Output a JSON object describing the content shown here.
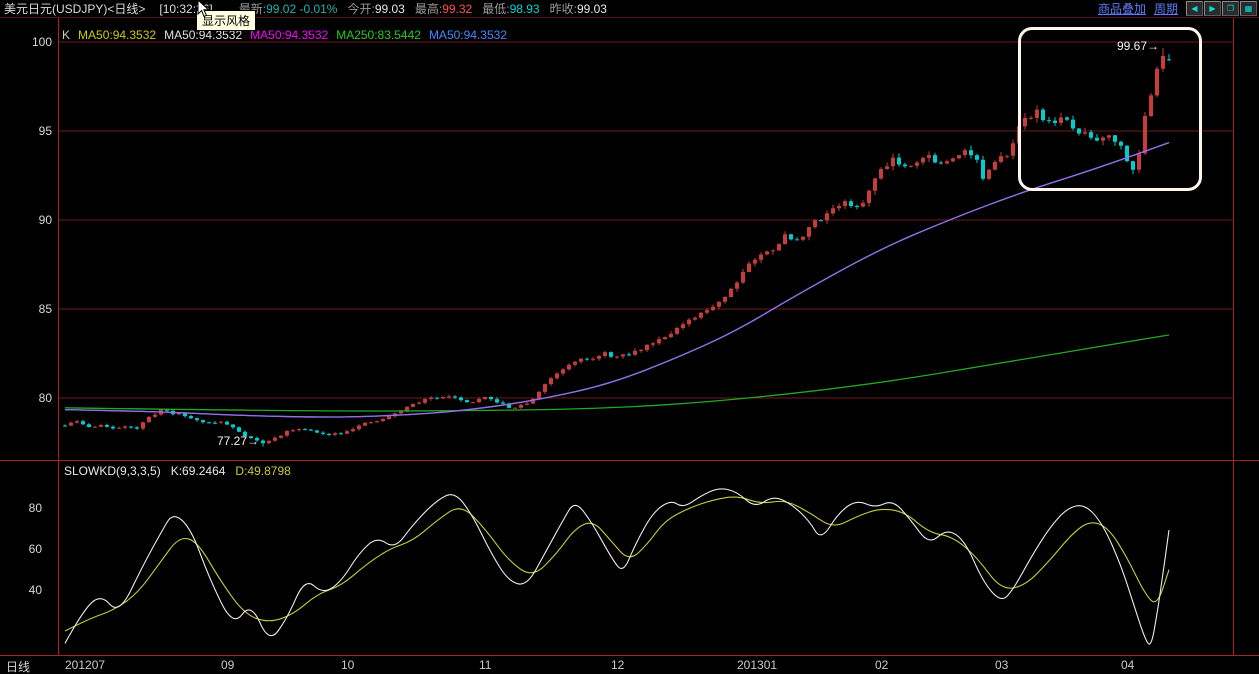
{
  "topbar": {
    "title": "美元日元(USDJPY)<日线>",
    "time": "[10:32:36]",
    "quotes": [
      {
        "label": "最新:",
        "value": "99.02",
        "change": "-0.01%",
        "color": "#20b2aa"
      },
      {
        "label": "今开:",
        "value": "99.03",
        "color": "#e8e8e8"
      },
      {
        "label": "最高:",
        "value": "99.32",
        "color": "#ff5050"
      },
      {
        "label": "最低:",
        "value": "98.93",
        "color": "#00d8d8"
      },
      {
        "label": "昨收:",
        "value": "99.03",
        "color": "#e8e8e8"
      }
    ],
    "links": [
      {
        "label": "商品叠加"
      },
      {
        "label": "周期"
      }
    ],
    "window_buttons": [
      {
        "name": "scroll-left-button",
        "glyph": "◀"
      },
      {
        "name": "scroll-right-button",
        "glyph": "▶"
      },
      {
        "name": "window-restore-button",
        "glyph": "❐"
      },
      {
        "name": "window-tile-button",
        "glyph": "▦"
      }
    ]
  },
  "tooltip": {
    "text": "显示风格"
  },
  "main_chart": {
    "indicator_labels": [
      {
        "text": "K",
        "color": "#cccccc"
      },
      {
        "text": "MA50:94.3532",
        "color": "#cccc00"
      },
      {
        "text": "MA50:94.3532",
        "color": "#e0e0e0"
      },
      {
        "text": "MA50:94.3532",
        "color": "#ff00ff"
      },
      {
        "text": "MA250:83.5442",
        "color": "#22cc22"
      },
      {
        "text": "MA50:94.3532",
        "color": "#4488ff"
      }
    ]
  },
  "kd_panel": {
    "label": "SLOWKD(9,3,3,5)",
    "k_label": "K:69.2464",
    "d_label": "D:49.8798"
  },
  "bottom_axis": {
    "period_label": "日线"
  },
  "colors": {
    "background": "#000000",
    "grid": "#6b1c1c",
    "frame": "#a82424",
    "frame_dim": "#551414",
    "link_blue": "#5b7cfa",
    "tooltip_bg": "#ffffe1",
    "highlight_border": "#fdf6e9"
  },
  "chart_data": [
    {
      "type": "candlestick",
      "symbol": "USDJPY",
      "title": "美元日元 日线",
      "period": "daily",
      "days": 184,
      "ylim": [
        77,
        100.5
      ],
      "y_ticks": [
        100,
        95,
        90,
        85,
        80
      ],
      "up_color": "#c83c3c",
      "down_color": "#00cdcd",
      "last_candle": {
        "open": 99.03,
        "high": 99.32,
        "low": 98.93,
        "close": 99.02
      },
      "low_annotation": {
        "day": 33,
        "price": 77.27,
        "label": "77.27",
        "arrow": "→"
      },
      "high_annotation": {
        "day": 183,
        "price": 99.67,
        "label": "99.67",
        "arrow": "→"
      },
      "close_waypoints": [
        [
          0,
          78.45
        ],
        [
          2,
          78.7
        ],
        [
          4,
          78.35
        ],
        [
          6,
          78.5
        ],
        [
          8,
          78.25
        ],
        [
          10,
          78.45
        ],
        [
          12,
          78.3
        ],
        [
          14,
          78.9
        ],
        [
          16,
          79.35
        ],
        [
          18,
          79.15
        ],
        [
          20,
          79.0
        ],
        [
          22,
          78.75
        ],
        [
          24,
          78.6
        ],
        [
          26,
          78.65
        ],
        [
          28,
          78.35
        ],
        [
          30,
          77.9
        ],
        [
          33,
          77.45
        ],
        [
          35,
          77.75
        ],
        [
          37,
          78.1
        ],
        [
          39,
          78.3
        ],
        [
          41,
          78.15
        ],
        [
          43,
          77.95
        ],
        [
          46,
          78.05
        ],
        [
          48,
          78.3
        ],
        [
          50,
          78.55
        ],
        [
          52,
          78.7
        ],
        [
          54,
          78.95
        ],
        [
          56,
          79.3
        ],
        [
          58,
          79.65
        ],
        [
          60,
          79.9
        ],
        [
          62,
          80.05
        ],
        [
          64,
          80.15
        ],
        [
          66,
          79.85
        ],
        [
          68,
          79.75
        ],
        [
          70,
          80.0
        ],
        [
          72,
          79.8
        ],
        [
          74,
          79.45
        ],
        [
          76,
          79.55
        ],
        [
          78,
          79.9
        ],
        [
          80,
          80.8
        ],
        [
          82,
          81.4
        ],
        [
          84,
          81.9
        ],
        [
          86,
          82.3
        ],
        [
          88,
          82.15
        ],
        [
          90,
          82.5
        ],
        [
          92,
          82.3
        ],
        [
          94,
          82.45
        ],
        [
          96,
          82.75
        ],
        [
          98,
          83.15
        ],
        [
          100,
          83.5
        ],
        [
          102,
          83.9
        ],
        [
          104,
          84.3
        ],
        [
          106,
          84.7
        ],
        [
          108,
          85.2
        ],
        [
          110,
          85.7
        ],
        [
          112,
          86.6
        ],
        [
          114,
          87.6
        ],
        [
          116,
          88.0
        ],
        [
          118,
          88.4
        ],
        [
          120,
          89.1
        ],
        [
          122,
          88.8
        ],
        [
          124,
          89.6
        ],
        [
          126,
          90.1
        ],
        [
          128,
          90.7
        ],
        [
          130,
          91.0
        ],
        [
          132,
          90.6
        ],
        [
          134,
          91.6
        ],
        [
          136,
          92.9
        ],
        [
          138,
          93.5
        ],
        [
          140,
          93.0
        ],
        [
          142,
          93.4
        ],
        [
          144,
          93.6
        ],
        [
          146,
          93.1
        ],
        [
          148,
          93.4
        ],
        [
          150,
          94.1
        ],
        [
          152,
          93.3
        ],
        [
          153,
          92.35
        ],
        [
          155,
          93.1
        ],
        [
          157,
          93.8
        ],
        [
          159,
          95.2
        ],
        [
          161,
          95.9
        ],
        [
          162,
          96.2
        ],
        [
          164,
          95.4
        ],
        [
          166,
          95.8
        ],
        [
          168,
          95.1
        ],
        [
          170,
          94.8
        ],
        [
          172,
          94.5
        ],
        [
          174,
          94.9
        ],
        [
          176,
          94.1
        ],
        [
          177,
          93.5
        ],
        [
          178,
          93.0
        ],
        [
          179,
          93.6
        ],
        [
          180,
          95.8
        ],
        [
          181,
          97.2
        ],
        [
          182,
          98.6
        ],
        [
          183,
          99.4
        ],
        [
          184,
          99.02
        ]
      ],
      "ma_series": [
        {
          "name": "MA50",
          "color": "#9a6ce0",
          "points": [
            [
              0,
              79.35
            ],
            [
              15,
              79.25
            ],
            [
              30,
              79.0
            ],
            [
              46,
              78.9
            ],
            [
              60,
              79.1
            ],
            [
              69,
              79.4
            ],
            [
              79,
              79.9
            ],
            [
              91,
              80.8
            ],
            [
              103,
              82.4
            ],
            [
              112,
              83.8
            ],
            [
              122,
              85.8
            ],
            [
              136,
              88.4
            ],
            [
              148,
              90.1
            ],
            [
              159,
              91.5
            ],
            [
              172,
              92.9
            ],
            [
              184,
              94.35
            ]
          ]
        },
        {
          "name": "MA250",
          "color": "#22a822",
          "points": [
            [
              0,
              79.45
            ],
            [
              30,
              79.3
            ],
            [
              60,
              79.25
            ],
            [
              91,
              79.4
            ],
            [
              112,
              79.9
            ],
            [
              135,
              80.8
            ],
            [
              155,
              81.9
            ],
            [
              176,
              83.1
            ],
            [
              184,
              83.54
            ]
          ]
        },
        {
          "name": "MA50b",
          "color": "#4080ff",
          "points": [
            [
              0,
              79.35
            ],
            [
              15,
              79.25
            ],
            [
              30,
              79.0
            ],
            [
              46,
              78.9
            ],
            [
              60,
              79.1
            ],
            [
              69,
              79.4
            ],
            [
              79,
              79.9
            ],
            [
              91,
              80.8
            ],
            [
              103,
              82.4
            ],
            [
              112,
              83.8
            ],
            [
              122,
              85.8
            ],
            [
              136,
              88.4
            ],
            [
              148,
              90.1
            ],
            [
              159,
              91.5
            ],
            [
              172,
              92.9
            ],
            [
              184,
              94.35
            ]
          ]
        }
      ],
      "x_ticks": [
        {
          "label": "201207",
          "day": 0
        },
        {
          "label": "09",
          "day": 26
        },
        {
          "label": "10",
          "day": 46
        },
        {
          "label": "11",
          "day": 69
        },
        {
          "label": "12",
          "day": 91
        },
        {
          "label": "201301",
          "day": 112
        },
        {
          "label": "02",
          "day": 135
        },
        {
          "label": "03",
          "day": 155
        },
        {
          "label": "04",
          "day": 176
        }
      ]
    },
    {
      "type": "line",
      "title": "SLOWKD(9,3,3,5)",
      "ylim": [
        0,
        100
      ],
      "y_ticks": [
        80,
        60,
        40
      ],
      "series": [
        {
          "name": "K",
          "color": "#ececec",
          "last_value": 69.2464,
          "points": [
            [
              0,
              14
            ],
            [
              3,
              30
            ],
            [
              6,
              38
            ],
            [
              9,
              28
            ],
            [
              13,
              52
            ],
            [
              16,
              68
            ],
            [
              18,
              78
            ],
            [
              21,
              70
            ],
            [
              24,
              46
            ],
            [
              28,
              22
            ],
            [
              31,
              34
            ],
            [
              34,
              14
            ],
            [
              37,
              26
            ],
            [
              40,
              46
            ],
            [
              43,
              38
            ],
            [
              46,
              44
            ],
            [
              49,
              58
            ],
            [
              52,
              66
            ],
            [
              55,
              60
            ],
            [
              58,
              72
            ],
            [
              62,
              84
            ],
            [
              65,
              88
            ],
            [
              68,
              76
            ],
            [
              71,
              58
            ],
            [
              74,
              44
            ],
            [
              77,
              42
            ],
            [
              80,
              58
            ],
            [
              83,
              74
            ],
            [
              85,
              84
            ],
            [
              88,
              72
            ],
            [
              91,
              56
            ],
            [
              93,
              48
            ],
            [
              95,
              62
            ],
            [
              98,
              78
            ],
            [
              101,
              84
            ],
            [
              103,
              80
            ],
            [
              106,
              86
            ],
            [
              109,
              90
            ],
            [
              112,
              88
            ],
            [
              115,
              80
            ],
            [
              118,
              86
            ],
            [
              121,
              82
            ],
            [
              124,
              74
            ],
            [
              126,
              64
            ],
            [
              129,
              78
            ],
            [
              132,
              84
            ],
            [
              135,
              80
            ],
            [
              138,
              84
            ],
            [
              141,
              74
            ],
            [
              144,
              62
            ],
            [
              147,
              70
            ],
            [
              150,
              64
            ],
            [
              153,
              44
            ],
            [
              156,
              34
            ],
            [
              158,
              40
            ],
            [
              161,
              56
            ],
            [
              164,
              70
            ],
            [
              167,
              80
            ],
            [
              170,
              82
            ],
            [
              173,
              72
            ],
            [
              176,
              52
            ],
            [
              178,
              34
            ],
            [
              180,
              16
            ],
            [
              181,
              12
            ],
            [
              182,
              28
            ],
            [
              183,
              48
            ],
            [
              184,
              69.25
            ]
          ]
        },
        {
          "name": "D",
          "color": "#cbcb3a",
          "last_value": 49.8798,
          "points": [
            [
              0,
              20
            ],
            [
              4,
              26
            ],
            [
              8,
              30
            ],
            [
              12,
              38
            ],
            [
              16,
              54
            ],
            [
              19,
              66
            ],
            [
              22,
              64
            ],
            [
              26,
              44
            ],
            [
              30,
              28
            ],
            [
              34,
              24
            ],
            [
              38,
              28
            ],
            [
              42,
              38
            ],
            [
              46,
              42
            ],
            [
              50,
              52
            ],
            [
              54,
              60
            ],
            [
              58,
              64
            ],
            [
              62,
              74
            ],
            [
              66,
              82
            ],
            [
              70,
              70
            ],
            [
              74,
              54
            ],
            [
              78,
              46
            ],
            [
              82,
              58
            ],
            [
              85,
              70
            ],
            [
              88,
              74
            ],
            [
              91,
              64
            ],
            [
              94,
              54
            ],
            [
              97,
              62
            ],
            [
              100,
              74
            ],
            [
              104,
              80
            ],
            [
              108,
              84
            ],
            [
              112,
              86
            ],
            [
              116,
              82
            ],
            [
              120,
              84
            ],
            [
              124,
              78
            ],
            [
              128,
              70
            ],
            [
              132,
              76
            ],
            [
              136,
              80
            ],
            [
              140,
              78
            ],
            [
              144,
              68
            ],
            [
              148,
              66
            ],
            [
              152,
              56
            ],
            [
              156,
              40
            ],
            [
              160,
              42
            ],
            [
              164,
              54
            ],
            [
              168,
              68
            ],
            [
              171,
              74
            ],
            [
              174,
              70
            ],
            [
              177,
              56
            ],
            [
              180,
              38
            ],
            [
              182,
              32
            ],
            [
              184,
              49.88
            ]
          ]
        }
      ]
    }
  ]
}
